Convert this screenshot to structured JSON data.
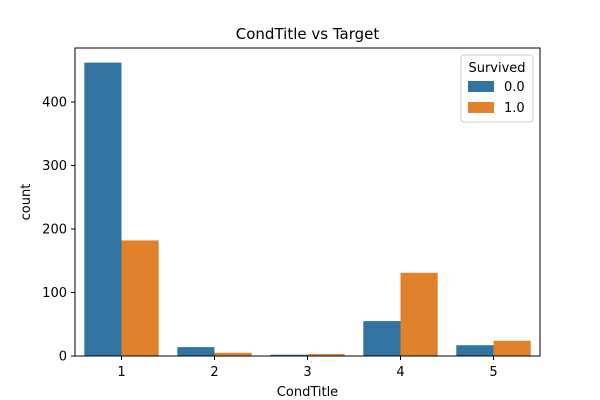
{
  "chart_data": {
    "type": "bar",
    "title": "CondTitle vs Target",
    "xlabel": "CondTitle",
    "ylabel": "count",
    "categories": [
      "1",
      "2",
      "3",
      "4",
      "5"
    ],
    "series": [
      {
        "name": "0.0",
        "values": [
          462,
          14,
          2,
          55,
          17
        ],
        "color": "#3274a1"
      },
      {
        "name": "1.0",
        "values": [
          182,
          5,
          3,
          131,
          24
        ],
        "color": "#e1812c"
      }
    ],
    "ylim": [
      0,
      485
    ],
    "yticks": [
      0,
      100,
      200,
      300,
      400
    ],
    "grid": false,
    "legend": {
      "title": "Survived",
      "placement": "top-right"
    }
  }
}
